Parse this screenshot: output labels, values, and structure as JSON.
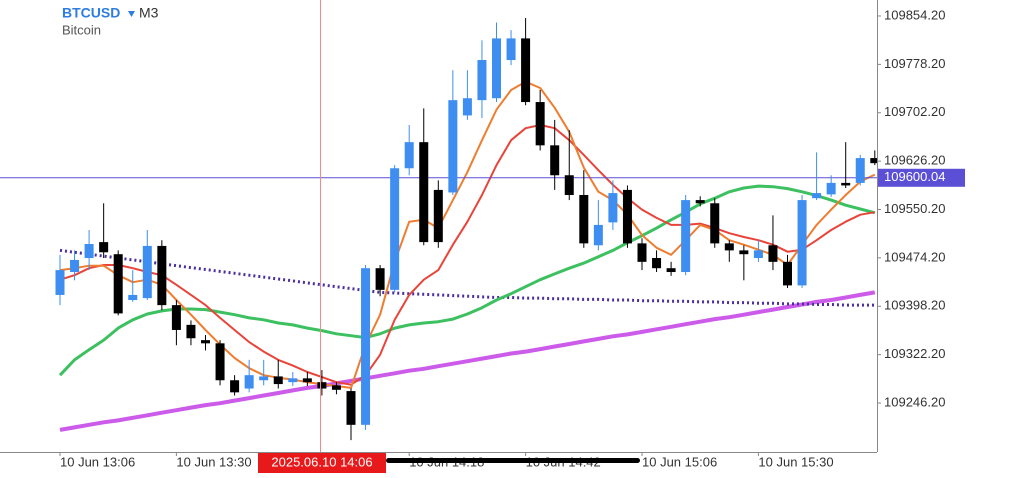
{
  "header": {
    "symbol": "BTCUSD",
    "timeframe": "M3",
    "description": "Bitcoin"
  },
  "chart_data": {
    "type": "candlestick",
    "categories": [
      "10 Jun 13:06",
      null,
      null,
      null,
      null,
      null,
      null,
      null,
      "10 Jun 13:30",
      null,
      null,
      null,
      null,
      null,
      null,
      null,
      null,
      null,
      null,
      null,
      null,
      null,
      null,
      null,
      "10 Jun 14:18",
      null,
      null,
      null,
      null,
      null,
      null,
      null,
      "10 Jun 14:42",
      null,
      null,
      null,
      null,
      null,
      null,
      null,
      "10 Jun 15:06",
      null,
      null,
      null,
      null,
      null,
      null,
      null,
      "10 Jun 15:30",
      null,
      null,
      null,
      null,
      null,
      null,
      null,
      null
    ],
    "open": [
      109416,
      109452,
      109474,
      109499,
      109480,
      109408,
      109411,
      109493,
      109400,
      109369,
      109345,
      109340,
      109282,
      109269,
      109282,
      109288,
      109279,
      109285,
      109279,
      109274,
      109265,
      109212,
      109458,
      109424,
      109615,
      109656,
      109581,
      109577,
      109698,
      109722,
      109725,
      109785,
      109819,
      109719,
      109651,
      109604,
      109573,
      109494,
      109530,
      109581,
      109497,
      109474,
      109458,
      109452,
      109565,
      109560,
      109497,
      109486,
      109474,
      109494,
      109468,
      109431,
      109568,
      109574,
      109592,
      109592,
      109631
    ],
    "high": [
      109479,
      109486,
      109518,
      109560,
      109486,
      109455,
      109518,
      109502,
      109408,
      109376,
      109353,
      109345,
      109290,
      109314,
      109314,
      109314,
      109295,
      109295,
      109298,
      109279,
      109269,
      109463,
      109463,
      109620,
      109683,
      109709,
      109596,
      109769,
      109769,
      109816,
      109844,
      109832,
      109851,
      109738,
      109691,
      109675,
      109612,
      109565,
      109596,
      109588,
      109505,
      109486,
      109468,
      109573,
      109571,
      109568,
      109502,
      109494,
      109502,
      109541,
      109479,
      109573,
      109640,
      109604,
      109656,
      109636,
      109643
    ],
    "low": [
      109400,
      109439,
      109455,
      109474,
      109384,
      109405,
      109408,
      109392,
      109337,
      109337,
      109329,
      109274,
      109258,
      109263,
      109274,
      109269,
      109273,
      109273,
      109258,
      109260,
      109188,
      109204,
      109414,
      109420,
      109604,
      109494,
      109490,
      109573,
      109691,
      109694,
      109719,
      109777,
      109714,
      109643,
      109581,
      109565,
      109490,
      109486,
      109518,
      109490,
      109455,
      109452,
      109446,
      109447,
      109555,
      109490,
      109468,
      109439,
      109468,
      109455,
      109427,
      109427,
      109565,
      109570,
      109584,
      109588,
      109620
    ],
    "close": [
      109455,
      109471,
      109496,
      109483,
      109387,
      109416,
      109493,
      109400,
      109361,
      109348,
      109340,
      109282,
      109263,
      109290,
      109288,
      109276,
      109285,
      109279,
      109269,
      109267,
      109212,
      109458,
      109424,
      109615,
      109656,
      109499,
      109499,
      109722,
      109725,
      109785,
      109819,
      109819,
      109719,
      109651,
      109604,
      109573,
      109497,
      109526,
      109576,
      109497,
      109468,
      109458,
      109452,
      109565,
      109560,
      109497,
      109486,
      109480,
      109486,
      109468,
      109431,
      109565,
      109576,
      109592,
      109588,
      109631,
      109623
    ],
    "up_color": "#3d8ef0",
    "down_color": "#000000",
    "lines": [
      {
        "color": "#cc5bea",
        "width": 4,
        "style": "solid",
        "values": [
          109204,
          109208,
          109212,
          109216,
          109219,
          109223,
          109227,
          109231,
          109235,
          109239,
          109243,
          109246,
          109250,
          109254,
          109258,
          109262,
          109266,
          109270,
          109273,
          109277,
          109281,
          109285,
          109289,
          109293,
          109297,
          109300,
          109304,
          109308,
          109312,
          109316,
          109320,
          109324,
          109327,
          109331,
          109335,
          109339,
          109343,
          109347,
          109351,
          109354,
          109358,
          109362,
          109366,
          109370,
          109374,
          109378,
          109381,
          109385,
          109389,
          109393,
          109397,
          109401,
          109405,
          109408,
          109412,
          109416,
          109420
        ]
      },
      {
        "color": "#4a2fa0",
        "width": 3,
        "style": "dotted",
        "values": [
          109486,
          109483,
          109480,
          109477,
          109474,
          109471,
          109468,
          109465,
          109462,
          109459,
          109456,
          109453,
          109450,
          109447,
          109444,
          109441,
          109438,
          109435,
          109432,
          109429,
          109426,
          109423,
          109420,
          109419,
          109418,
          109417,
          109416,
          109415,
          109414,
          109413,
          109412,
          109412,
          109411,
          109411,
          109410,
          109410,
          109409,
          109409,
          109408,
          109408,
          109407,
          109407,
          109406,
          109406,
          109405,
          109405,
          109404,
          109404,
          109403,
          109403,
          109402,
          109402,
          109401,
          109401,
          109400,
          109400,
          109400
        ]
      },
      {
        "color": "#3cc060",
        "width": 3,
        "style": "solid",
        "values": [
          109290,
          109314,
          109330,
          109345,
          109364,
          109377,
          109386,
          109391,
          109394,
          109394,
          109393,
          109389,
          109385,
          109380,
          109377,
          109372,
          109369,
          109364,
          109360,
          109355,
          109352,
          109349,
          109355,
          109364,
          109369,
          109372,
          109374,
          109378,
          109386,
          109396,
          109408,
          109418,
          109429,
          109440,
          109449,
          109458,
          109466,
          109476,
          109486,
          109498,
          109509,
          109521,
          109534,
          109546,
          109559,
          109568,
          109578,
          109584,
          109587,
          109586,
          109583,
          109578,
          109572,
          109565,
          109557,
          109551,
          109545
        ]
      },
      {
        "color": "#e8443a",
        "width": 2,
        "style": "solid",
        "values": [
          109440,
          109447,
          109458,
          109463,
          109463,
          109458,
          109452,
          109447,
          109432,
          109416,
          109400,
          109380,
          109361,
          109342,
          109327,
          109314,
          109305,
          109295,
          109287,
          109279,
          109275,
          109290,
          109322,
          109377,
          109416,
          109440,
          109455,
          109495,
          109531,
          109573,
          109620,
          109659,
          109678,
          109683,
          109678,
          109659,
          109636,
          109612,
          109589,
          109568,
          109550,
          109537,
          109526,
          109526,
          109528,
          109521,
          109513,
          109507,
          109502,
          109495,
          109484,
          109487,
          109502,
          109518,
          109531,
          109542,
          109546
        ]
      },
      {
        "color": "#ee7d30",
        "width": 2,
        "style": "solid",
        "values": [
          109455,
          109458,
          109462,
          109462,
          109447,
          109436,
          109440,
          109432,
          109408,
          109385,
          109361,
          109338,
          109317,
          109301,
          109290,
          109286,
          109283,
          109279,
          109276,
          109273,
          109270,
          109338,
          109385,
          109468,
          109531,
          109534,
          109521,
          109565,
          109609,
          109659,
          109707,
          109738,
          109751,
          109741,
          109710,
          109672,
          109616,
          109578,
          109565,
          109542,
          109510,
          109490,
          109479,
          109502,
          109526,
          109518,
          109502,
          109495,
          109487,
          109479,
          109463,
          109495,
          109526,
          109550,
          109573,
          109594,
          109605
        ]
      }
    ],
    "last_price": 109600.04,
    "last_price_color": "#5b4fd6",
    "crosshair_label": "2025.06.10 14:06",
    "ylim": [
      109169.3,
      109879.3
    ],
    "yticks": [
      {
        "value": 109854.2,
        "label": "109854.20"
      },
      {
        "value": 109778.2,
        "label": "109778.20"
      },
      {
        "value": 109702.2,
        "label": "109702.20"
      },
      {
        "value": 109626.2,
        "label": "109626.20"
      },
      {
        "value": 109550.2,
        "label": "109550.20"
      },
      {
        "value": 109474.2,
        "label": "109474.20"
      },
      {
        "value": 109398.2,
        "label": "109398.20"
      },
      {
        "value": 109322.2,
        "label": "109322.20"
      },
      {
        "value": 109246.2,
        "label": "109246.20"
      }
    ]
  }
}
